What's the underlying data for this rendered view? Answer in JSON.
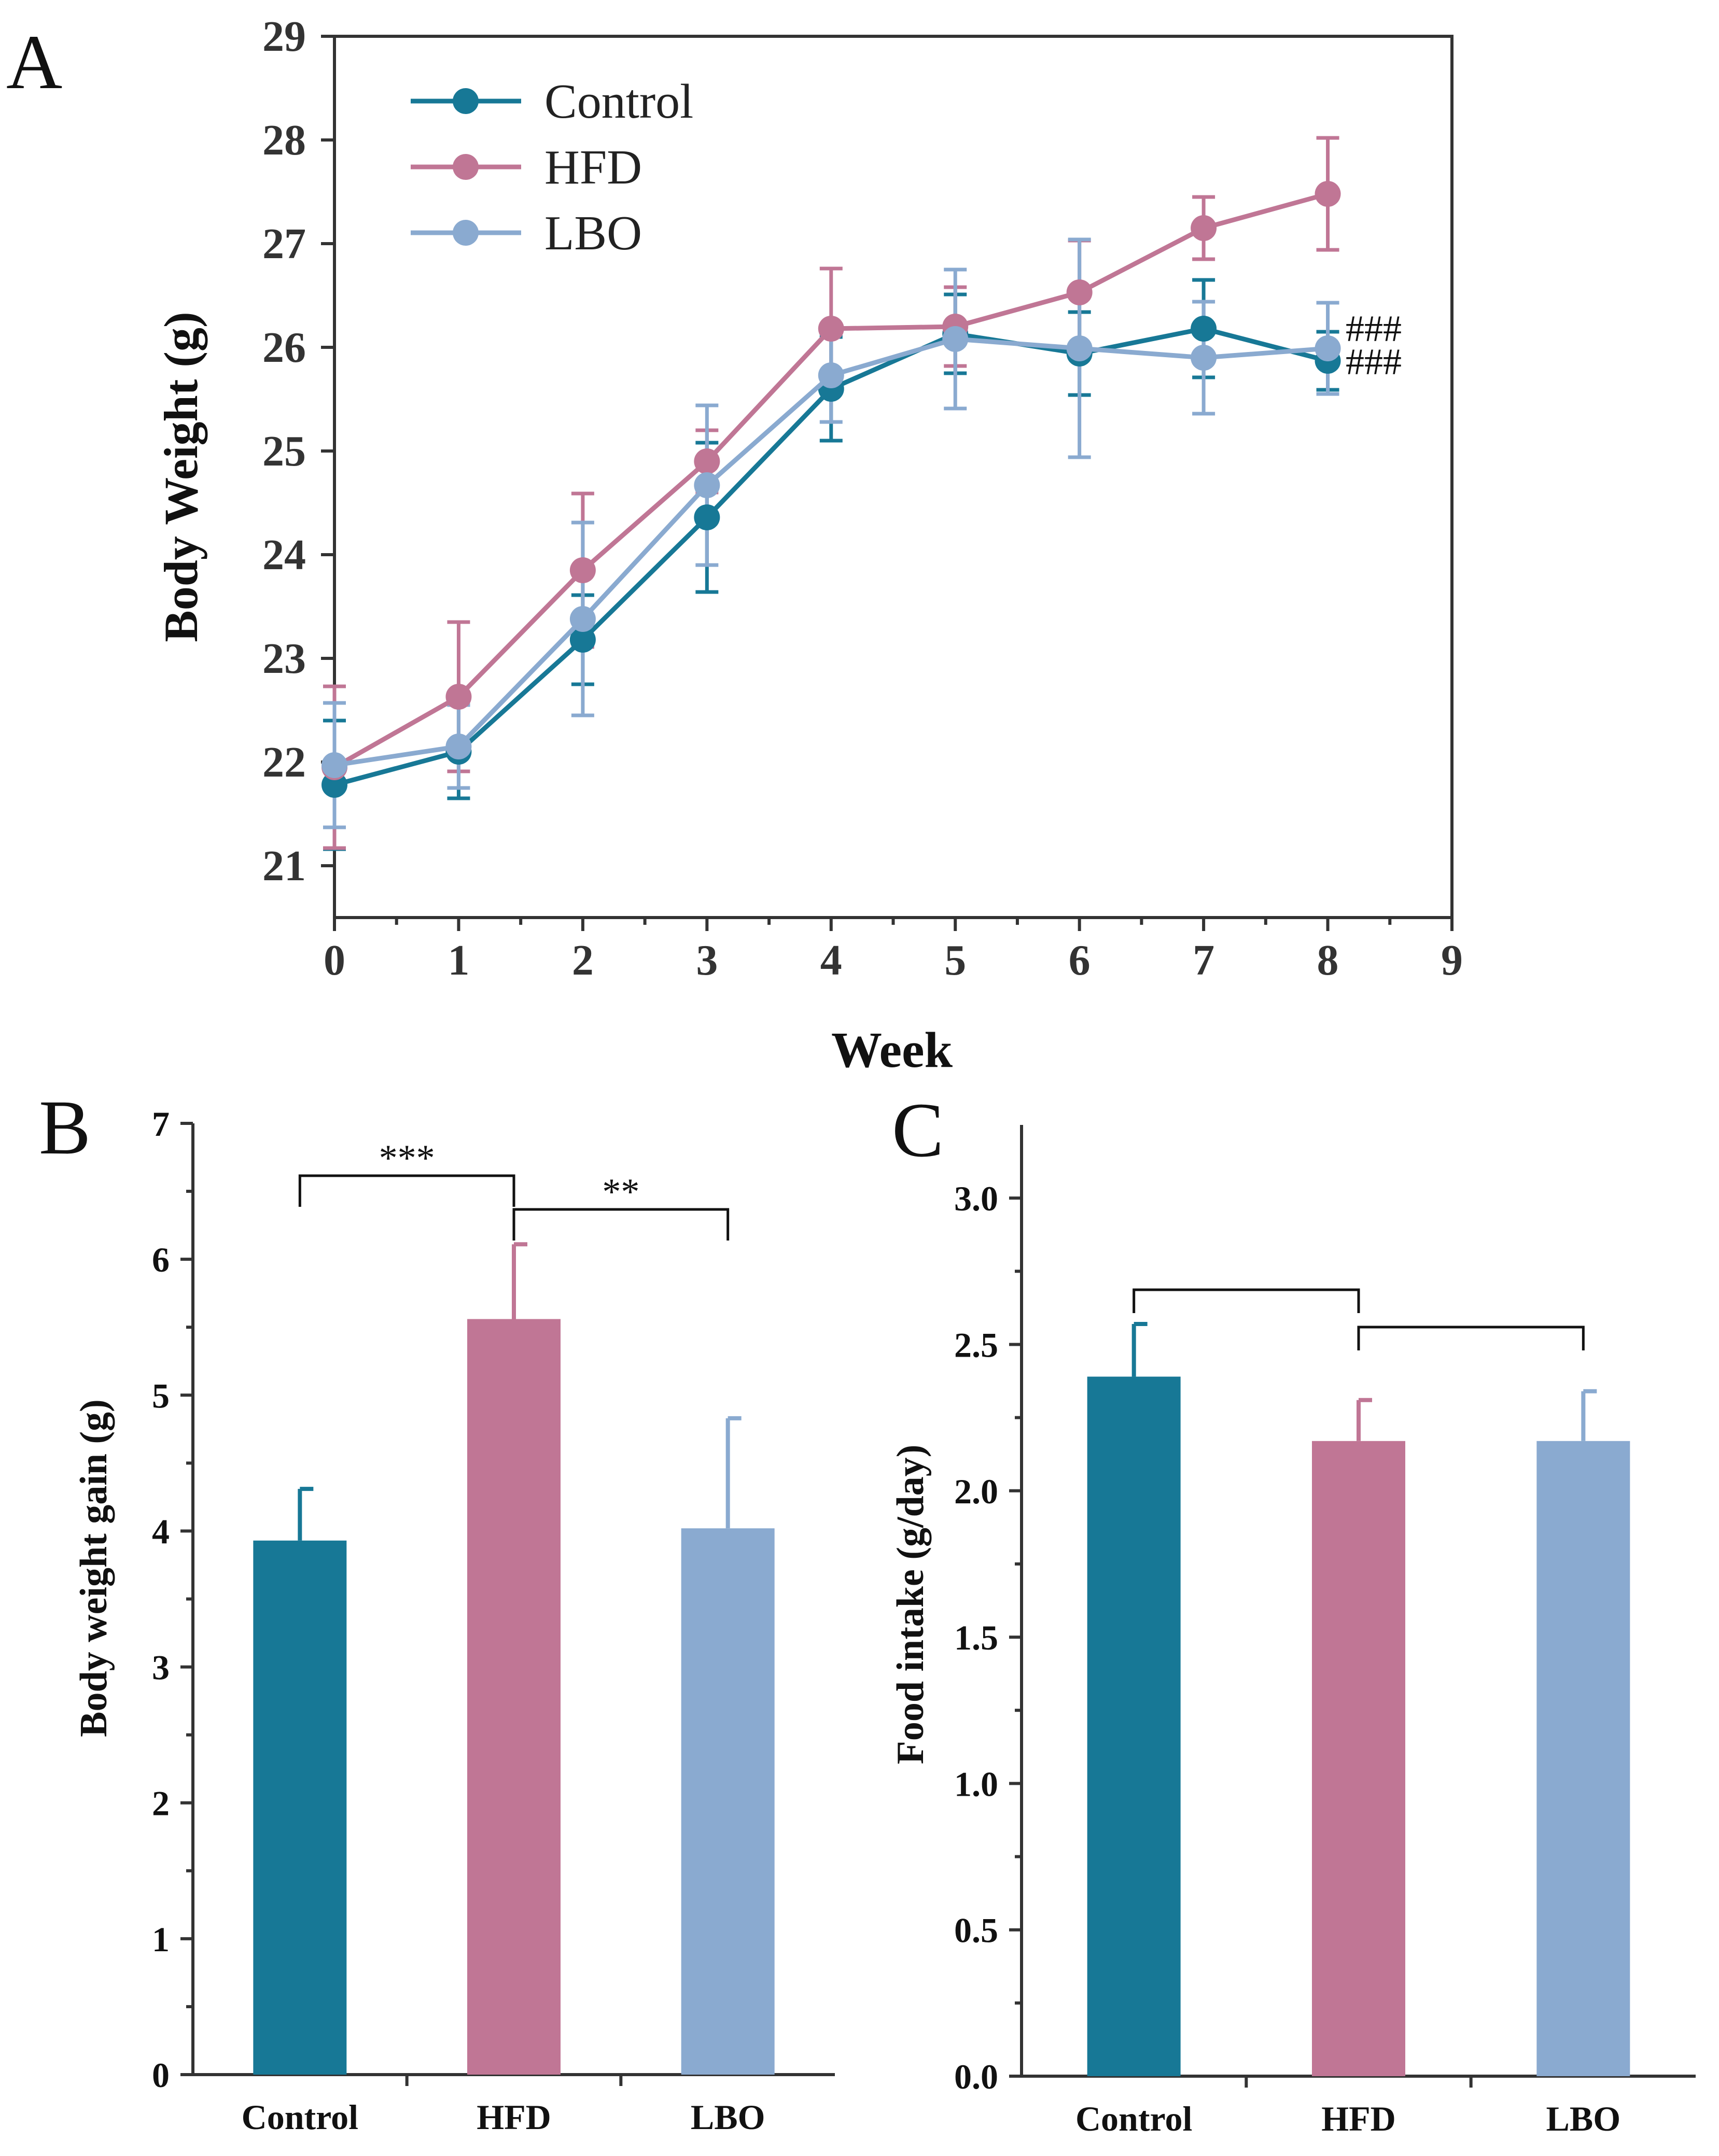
{
  "figure": {
    "panel_labels": [
      "A",
      "B",
      "C"
    ]
  },
  "colors": {
    "Control": "#177896",
    "HFD": "#c07695",
    "LBO": "#8aaad0"
  },
  "chart_data": [
    {
      "panel": "A",
      "type": "line",
      "title": "",
      "xlabel": "Week",
      "ylabel": "Body Weight (g)",
      "xlim": [
        0,
        9
      ],
      "ylim": [
        20.5,
        29
      ],
      "xticks": [
        0,
        1,
        2,
        3,
        4,
        5,
        6,
        7,
        8,
        9
      ],
      "yticks": [
        21,
        22,
        23,
        24,
        25,
        26,
        27,
        28,
        29
      ],
      "legend_position": "top-left",
      "series": [
        {
          "name": "Control",
          "x": [
            0,
            1,
            2,
            3,
            4,
            5,
            6,
            7,
            8
          ],
          "values": [
            21.78,
            22.1,
            23.18,
            24.36,
            25.6,
            26.13,
            25.94,
            26.18,
            25.87
          ],
          "errors": [
            0.62,
            0.45,
            0.43,
            0.72,
            0.5,
            0.38,
            0.4,
            0.47,
            0.28
          ]
        },
        {
          "name": "HFD",
          "x": [
            0,
            1,
            2,
            3,
            4,
            5,
            6,
            7,
            8
          ],
          "values": [
            21.95,
            22.63,
            23.85,
            24.9,
            26.18,
            26.2,
            26.53,
            27.15,
            27.48
          ],
          "errors": [
            0.78,
            0.72,
            0.74,
            0.3,
            0.58,
            0.38,
            0.5,
            0.3,
            0.54
          ]
        },
        {
          "name": "LBO",
          "x": [
            0,
            1,
            2,
            3,
            4,
            5,
            6,
            7,
            8
          ],
          "values": [
            21.97,
            22.15,
            23.38,
            24.67,
            25.73,
            26.08,
            25.99,
            25.9,
            25.99
          ],
          "errors": [
            0.6,
            0.4,
            0.93,
            0.77,
            0.45,
            0.67,
            1.05,
            0.54,
            0.44
          ]
        }
      ],
      "annotations": [
        "###",
        "###"
      ]
    },
    {
      "panel": "B",
      "type": "bar",
      "title": "",
      "xlabel": "",
      "ylabel": "Body weight gain (g)",
      "ylim": [
        0,
        7
      ],
      "yticks": [
        0,
        1,
        2,
        3,
        4,
        5,
        6,
        7
      ],
      "categories": [
        "Control",
        "HFD",
        "LBO"
      ],
      "values": [
        3.93,
        5.56,
        4.02
      ],
      "errors": [
        0.38,
        0.55,
        0.81
      ],
      "significance": [
        {
          "from": "Control",
          "to": "HFD",
          "label": "***"
        },
        {
          "from": "HFD",
          "to": "LBO",
          "label": "**"
        }
      ]
    },
    {
      "panel": "C",
      "type": "bar",
      "title": "",
      "xlabel": "",
      "ylabel": "Food intake (g/day)",
      "ylim": [
        0,
        3.25
      ],
      "yticks": [
        "0.0",
        "0.5",
        "1.0",
        "1.5",
        "2.0",
        "2.5",
        "3.0"
      ],
      "categories": [
        "Control",
        "HFD",
        "LBO"
      ],
      "values": [
        2.39,
        2.17,
        2.17
      ],
      "errors": [
        0.18,
        0.14,
        0.17
      ],
      "significance": [
        {
          "from": "Control",
          "to": "HFD",
          "label": ""
        },
        {
          "from": "HFD",
          "to": "LBO",
          "label": ""
        }
      ]
    }
  ]
}
